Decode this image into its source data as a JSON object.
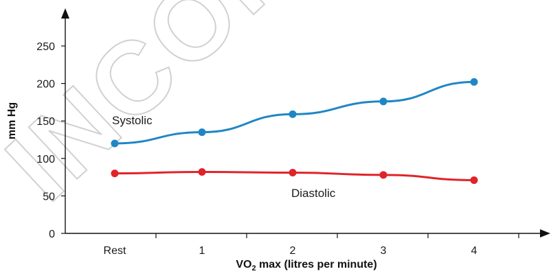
{
  "watermark": "INCORRECT",
  "chart_data": {
    "type": "line",
    "x": [
      "Rest",
      "1",
      "2",
      "3",
      "4"
    ],
    "xlabel_main": "VO",
    "xlabel_sub": "2",
    "xlabel_rest": " max (litres per minute)",
    "ylabel": "mm Hg",
    "ylim": [
      0,
      250
    ],
    "yticks": [
      0,
      50,
      100,
      150,
      200,
      250
    ],
    "grid": false,
    "series": [
      {
        "name": "Systolic",
        "color": "#1f86c6",
        "values": [
          120,
          135,
          159,
          176,
          202
        ]
      },
      {
        "name": "Diastolic",
        "color": "#e0232a",
        "values": [
          80,
          82,
          81,
          78,
          71
        ]
      }
    ]
  }
}
